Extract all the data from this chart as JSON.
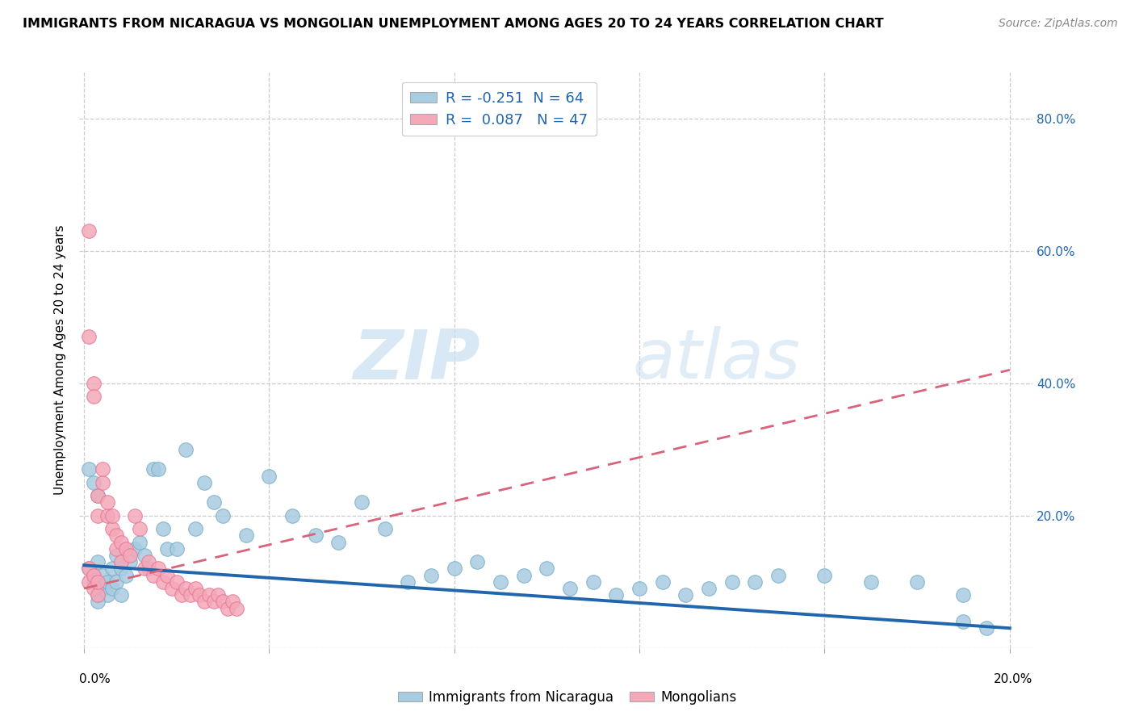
{
  "title": "IMMIGRANTS FROM NICARAGUA VS MONGOLIAN UNEMPLOYMENT AMONG AGES 20 TO 24 YEARS CORRELATION CHART",
  "source": "Source: ZipAtlas.com",
  "ylabel": "Unemployment Among Ages 20 to 24 years",
  "legend_blue_label": "R = -0.251  N = 64",
  "legend_pink_label": "R =  0.087   N = 47",
  "legend_bottom_blue": "Immigrants from Nicaragua",
  "legend_bottom_pink": "Mongolians",
  "blue_color": "#a8cce0",
  "pink_color": "#f4a8b8",
  "blue_dot_edge": "#7aaec8",
  "pink_dot_edge": "#e87898",
  "blue_line_color": "#2166ac",
  "pink_line_color": "#d9637a",
  "watermark_zip": "ZIP",
  "watermark_atlas": "atlas",
  "blue_scatter_x": [
    0.001,
    0.002,
    0.003,
    0.003,
    0.004,
    0.004,
    0.005,
    0.005,
    0.006,
    0.006,
    0.007,
    0.007,
    0.008,
    0.008,
    0.009,
    0.01,
    0.011,
    0.012,
    0.013,
    0.014,
    0.015,
    0.016,
    0.017,
    0.018,
    0.02,
    0.022,
    0.024,
    0.026,
    0.028,
    0.03,
    0.035,
    0.04,
    0.045,
    0.05,
    0.055,
    0.06,
    0.065,
    0.07,
    0.075,
    0.08,
    0.085,
    0.09,
    0.095,
    0.1,
    0.105,
    0.11,
    0.115,
    0.12,
    0.125,
    0.13,
    0.135,
    0.14,
    0.145,
    0.15,
    0.16,
    0.17,
    0.18,
    0.19,
    0.001,
    0.002,
    0.003,
    0.19,
    0.195,
    0.003
  ],
  "blue_scatter_y": [
    0.12,
    0.1,
    0.08,
    0.13,
    0.11,
    0.09,
    0.1,
    0.08,
    0.12,
    0.09,
    0.14,
    0.1,
    0.12,
    0.08,
    0.11,
    0.13,
    0.15,
    0.16,
    0.14,
    0.12,
    0.27,
    0.27,
    0.18,
    0.15,
    0.15,
    0.3,
    0.18,
    0.25,
    0.22,
    0.2,
    0.17,
    0.26,
    0.2,
    0.17,
    0.16,
    0.22,
    0.18,
    0.1,
    0.11,
    0.12,
    0.13,
    0.1,
    0.11,
    0.12,
    0.09,
    0.1,
    0.08,
    0.09,
    0.1,
    0.08,
    0.09,
    0.1,
    0.1,
    0.11,
    0.11,
    0.1,
    0.1,
    0.08,
    0.27,
    0.25,
    0.23,
    0.04,
    0.03,
    0.07
  ],
  "pink_scatter_x": [
    0.001,
    0.001,
    0.002,
    0.002,
    0.003,
    0.003,
    0.004,
    0.004,
    0.005,
    0.005,
    0.006,
    0.006,
    0.007,
    0.007,
    0.008,
    0.008,
    0.009,
    0.01,
    0.011,
    0.012,
    0.013,
    0.014,
    0.015,
    0.016,
    0.017,
    0.018,
    0.019,
    0.02,
    0.021,
    0.022,
    0.023,
    0.024,
    0.025,
    0.026,
    0.027,
    0.028,
    0.029,
    0.03,
    0.031,
    0.032,
    0.033,
    0.001,
    0.001,
    0.002,
    0.002,
    0.003,
    0.003
  ],
  "pink_scatter_y": [
    0.63,
    0.47,
    0.4,
    0.38,
    0.2,
    0.23,
    0.25,
    0.27,
    0.2,
    0.22,
    0.18,
    0.2,
    0.15,
    0.17,
    0.13,
    0.16,
    0.15,
    0.14,
    0.2,
    0.18,
    0.12,
    0.13,
    0.11,
    0.12,
    0.1,
    0.11,
    0.09,
    0.1,
    0.08,
    0.09,
    0.08,
    0.09,
    0.08,
    0.07,
    0.08,
    0.07,
    0.08,
    0.07,
    0.06,
    0.07,
    0.06,
    0.1,
    0.12,
    0.09,
    0.11,
    0.08,
    0.1
  ],
  "blue_trendline_x": [
    0.0,
    0.2
  ],
  "blue_trendline_y": [
    0.125,
    0.03
  ],
  "pink_trendline_x": [
    0.0,
    0.2
  ],
  "pink_trendline_y": [
    0.09,
    0.42
  ],
  "xlim": [
    -0.001,
    0.205
  ],
  "ylim": [
    0.0,
    0.87
  ],
  "yticks": [
    0.0,
    0.2,
    0.4,
    0.6,
    0.8
  ],
  "ytick_labels": [
    "",
    "20.0%",
    "40.0%",
    "60.0%",
    "80.0%"
  ],
  "xtick_positions": [
    0.0,
    0.04,
    0.08,
    0.12,
    0.16,
    0.2
  ],
  "grid_color": "#cccccc",
  "title_fontsize": 11.5,
  "source_fontsize": 10,
  "tick_fontsize": 11,
  "ylabel_fontsize": 11
}
